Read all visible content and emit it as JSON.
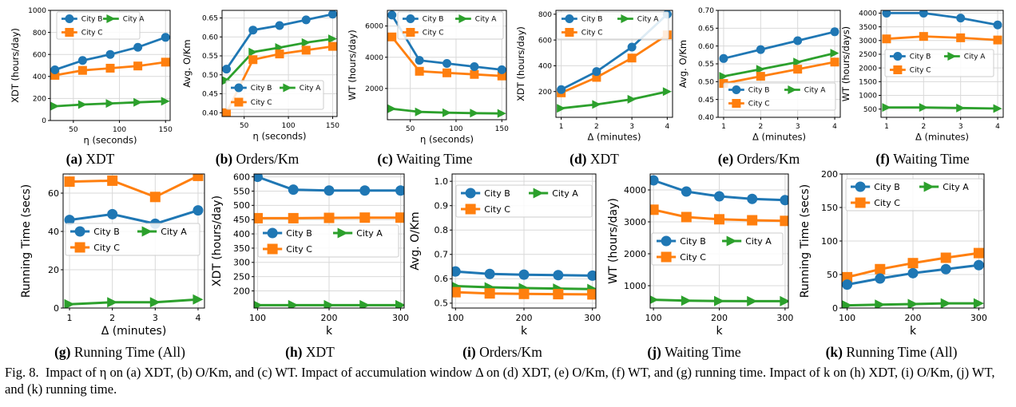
{
  "colors": {
    "City B": "#1f77b4",
    "City C": "#ff7f0e",
    "City A": "#2ca02c",
    "grid": "#d9d9d9"
  },
  "caption": {
    "fig": "Fig. 8.",
    "text": "Impact of η on (a) XDT, (b) O/Km, and (c) WT. Impact of accumulation window Δ on (d) XDT, (e) O/Km, (f) WT, and (g) running time. Impact of k on (h) XDT, (i) O/Km, (j) WT, and (k) running time."
  },
  "chart_data": [
    {
      "type": "line",
      "label": "(a)",
      "caption": "XDT",
      "xlabel": "η (seconds)",
      "ylabel": "XDT (hours/day)",
      "xlim": [
        25,
        155
      ],
      "ylim": [
        0,
        1000
      ],
      "xticks": [
        "50",
        "100",
        "150"
      ],
      "yticks": [
        "0",
        "200",
        "400",
        "600",
        "800",
        "1000"
      ],
      "x": [
        30,
        60,
        90,
        120,
        150
      ],
      "series": [
        {
          "name": "City B",
          "values": [
            460,
            545,
            600,
            665,
            755
          ]
        },
        {
          "name": "City C",
          "values": [
            410,
            455,
            475,
            495,
            530
          ]
        },
        {
          "name": "City A",
          "values": [
            130,
            145,
            155,
            165,
            175
          ]
        }
      ],
      "legend": "top-left, 2 columns"
    },
    {
      "type": "line",
      "label": "(b)",
      "caption": "Orders/Km",
      "xlabel": "η (seconds)",
      "ylabel": "Avg. O/Km",
      "xlim": [
        25,
        155
      ],
      "ylim": [
        0.39,
        0.67
      ],
      "xticks": [
        "50",
        "100",
        "150"
      ],
      "yticks": [
        "0.40",
        "0.45",
        "0.50",
        "0.55",
        "0.60",
        "0.65"
      ],
      "x": [
        30,
        60,
        90,
        120,
        150
      ],
      "series": [
        {
          "name": "City B",
          "values": [
            0.515,
            0.618,
            0.63,
            0.645,
            0.66
          ]
        },
        {
          "name": "City C",
          "values": [
            0.4,
            0.54,
            0.555,
            0.565,
            0.575
          ]
        },
        {
          "name": "City A",
          "values": [
            0.485,
            0.56,
            0.572,
            0.585,
            0.595
          ]
        }
      ],
      "legend": "bottom-right, 2 columns"
    },
    {
      "type": "line",
      "label": "(c)",
      "caption": "Waiting Time",
      "xlabel": "η (seconds)",
      "ylabel": "WT (hours/day)",
      "xlim": [
        25,
        155
      ],
      "ylim": [
        0,
        7000
      ],
      "xticks": [
        "50",
        "100",
        "150"
      ],
      "yticks": [
        "2000",
        "4000",
        "6000"
      ],
      "x": [
        30,
        60,
        90,
        120,
        150
      ],
      "series": [
        {
          "name": "City B",
          "values": [
            6700,
            3800,
            3600,
            3400,
            3200
          ]
        },
        {
          "name": "City C",
          "values": [
            5300,
            3100,
            3000,
            2900,
            2800
          ]
        },
        {
          "name": "City A",
          "values": [
            700,
            500,
            450,
            420,
            400
          ]
        }
      ],
      "legend": "top, 2 columns"
    },
    {
      "type": "line",
      "label": "(d)",
      "caption": "XDT",
      "xlabel": "Δ (minutes)",
      "ylabel": "XDT (hours/day)",
      "xlim": [
        0.85,
        4.15
      ],
      "ylim": [
        0,
        830
      ],
      "xticks": [
        "1",
        "2",
        "3",
        "4"
      ],
      "yticks": [
        "200",
        "400",
        "600",
        "800"
      ],
      "x": [
        1,
        2,
        3,
        4
      ],
      "series": [
        {
          "name": "City B",
          "values": [
            215,
            355,
            545,
            800
          ]
        },
        {
          "name": "City C",
          "values": [
            190,
            310,
            460,
            640
          ]
        },
        {
          "name": "City A",
          "values": [
            70,
            100,
            140,
            200
          ]
        }
      ],
      "legend": "top, 2 columns"
    },
    {
      "type": "line",
      "label": "(e)",
      "caption": "Orders/Km",
      "xlabel": "Δ (minutes)",
      "ylabel": "Avg. O/Km",
      "xlim": [
        0.85,
        4.15
      ],
      "ylim": [
        0.4,
        0.7
      ],
      "xticks": [
        "1",
        "2",
        "3",
        "4"
      ],
      "yticks": [
        "0.40",
        "0.45",
        "0.50",
        "0.55",
        "0.60",
        "0.65",
        "0.70"
      ],
      "x": [
        1,
        2,
        3,
        4
      ],
      "series": [
        {
          "name": "City B",
          "values": [
            0.565,
            0.59,
            0.615,
            0.64
          ]
        },
        {
          "name": "City C",
          "values": [
            0.495,
            0.515,
            0.535,
            0.555
          ]
        },
        {
          "name": "City A",
          "values": [
            0.515,
            0.535,
            0.555,
            0.58
          ]
        }
      ],
      "legend": "bottom, 2 columns"
    },
    {
      "type": "line",
      "label": "(f)",
      "caption": "Waiting Time",
      "xlabel": "Δ (minutes)",
      "ylabel": "WT (hours/days)",
      "xlim": [
        0.85,
        4.15
      ],
      "ylim": [
        200,
        4100
      ],
      "xticks": [
        "1",
        "2",
        "3",
        "4"
      ],
      "yticks": [
        "500",
        "1000",
        "1500",
        "2000",
        "2500",
        "3000",
        "3500",
        "4000"
      ],
      "x": [
        1,
        2,
        3,
        4
      ],
      "series": [
        {
          "name": "City B",
          "values": [
            4000,
            4000,
            3820,
            3570
          ]
        },
        {
          "name": "City C",
          "values": [
            3060,
            3150,
            3100,
            3020
          ]
        },
        {
          "name": "City A",
          "values": [
            560,
            560,
            540,
            520
          ]
        }
      ],
      "legend": "middle, 2 columns"
    },
    {
      "type": "line",
      "label": "(g)",
      "caption": "Running Time (All)",
      "xlabel": "Δ (minutes)",
      "ylabel": "Running Time (secs)",
      "xlim": [
        0.85,
        4.15
      ],
      "ylim": [
        0,
        70
      ],
      "xticks": [
        "1",
        "2",
        "3",
        "4"
      ],
      "yticks": [
        "0",
        "20",
        "40",
        "60"
      ],
      "x": [
        1,
        2,
        3,
        4
      ],
      "series": [
        {
          "name": "City B",
          "values": [
            46,
            49,
            44,
            51
          ]
        },
        {
          "name": "City C",
          "values": [
            66,
            66.5,
            58,
            69
          ]
        },
        {
          "name": "City A",
          "values": [
            2,
            3,
            3,
            4.5
          ]
        }
      ],
      "legend": "middle, 2 columns"
    },
    {
      "type": "line",
      "label": "(h)",
      "caption": "XDT",
      "xlabel": "k",
      "ylabel": "XDT (hours/day)",
      "xlim": [
        95,
        305
      ],
      "ylim": [
        140,
        610
      ],
      "xticks": [
        "100",
        "200",
        "300"
      ],
      "yticks": [
        "200",
        "250",
        "300",
        "350",
        "400",
        "450",
        "500",
        "550",
        "600"
      ],
      "x": [
        100,
        150,
        200,
        250,
        300
      ],
      "series": [
        {
          "name": "City B",
          "values": [
            600,
            555,
            552,
            552,
            552
          ]
        },
        {
          "name": "City C",
          "values": [
            455,
            455,
            456,
            457,
            457
          ]
        },
        {
          "name": "City A",
          "values": [
            150,
            150,
            150,
            150,
            150
          ]
        }
      ],
      "legend": "middle, 2 columns"
    },
    {
      "type": "line",
      "label": "(i)",
      "caption": "Orders/Km",
      "xlabel": "k",
      "ylabel": "Avg. O/Km",
      "xlim": [
        95,
        305
      ],
      "ylim": [
        0.48,
        1.03
      ],
      "xticks": [
        "100",
        "200",
        "300"
      ],
      "yticks": [
        "0.5",
        "0.6",
        "0.7",
        "0.8",
        "0.9",
        "1.0"
      ],
      "x": [
        100,
        150,
        200,
        250,
        300
      ],
      "series": [
        {
          "name": "City B",
          "values": [
            0.63,
            0.62,
            0.617,
            0.615,
            0.613
          ]
        },
        {
          "name": "City C",
          "values": [
            0.545,
            0.54,
            0.538,
            0.537,
            0.536
          ]
        },
        {
          "name": "City A",
          "values": [
            0.57,
            0.565,
            0.562,
            0.56,
            0.558
          ]
        }
      ],
      "legend": "top-left, 2 columns"
    },
    {
      "type": "line",
      "label": "(j)",
      "caption": "Waiting Time",
      "xlabel": "k",
      "ylabel": "WT (hours/day)",
      "xlim": [
        95,
        305
      ],
      "ylim": [
        300,
        4500
      ],
      "xticks": [
        "100",
        "200",
        "300"
      ],
      "yticks": [
        "1000",
        "2000",
        "3000",
        "4000"
      ],
      "x": [
        100,
        150,
        200,
        250,
        300
      ],
      "series": [
        {
          "name": "City B",
          "values": [
            4300,
            3950,
            3800,
            3720,
            3680
          ]
        },
        {
          "name": "City C",
          "values": [
            3380,
            3150,
            3080,
            3050,
            3030
          ]
        },
        {
          "name": "City A",
          "values": [
            560,
            530,
            520,
            515,
            515
          ]
        }
      ],
      "legend": "middle, 2 columns"
    },
    {
      "type": "line",
      "label": "(k)",
      "caption": "Running Time (All)",
      "xlabel": "k",
      "ylabel": "Running Time (secs)",
      "xlim": [
        92,
        308
      ],
      "ylim": [
        0,
        200
      ],
      "xticks": [
        "100",
        "200",
        "300"
      ],
      "yticks": [
        "0",
        "50",
        "100",
        "150",
        "200"
      ],
      "x": [
        100,
        150,
        200,
        250,
        300
      ],
      "series": [
        {
          "name": "City B",
          "values": [
            35,
            44,
            52,
            58,
            64
          ]
        },
        {
          "name": "City C",
          "values": [
            46,
            58,
            67,
            75,
            82
          ]
        },
        {
          "name": "City A",
          "values": [
            4,
            5,
            6,
            7,
            7
          ]
        }
      ],
      "legend": "top-left, 2 columns"
    }
  ]
}
